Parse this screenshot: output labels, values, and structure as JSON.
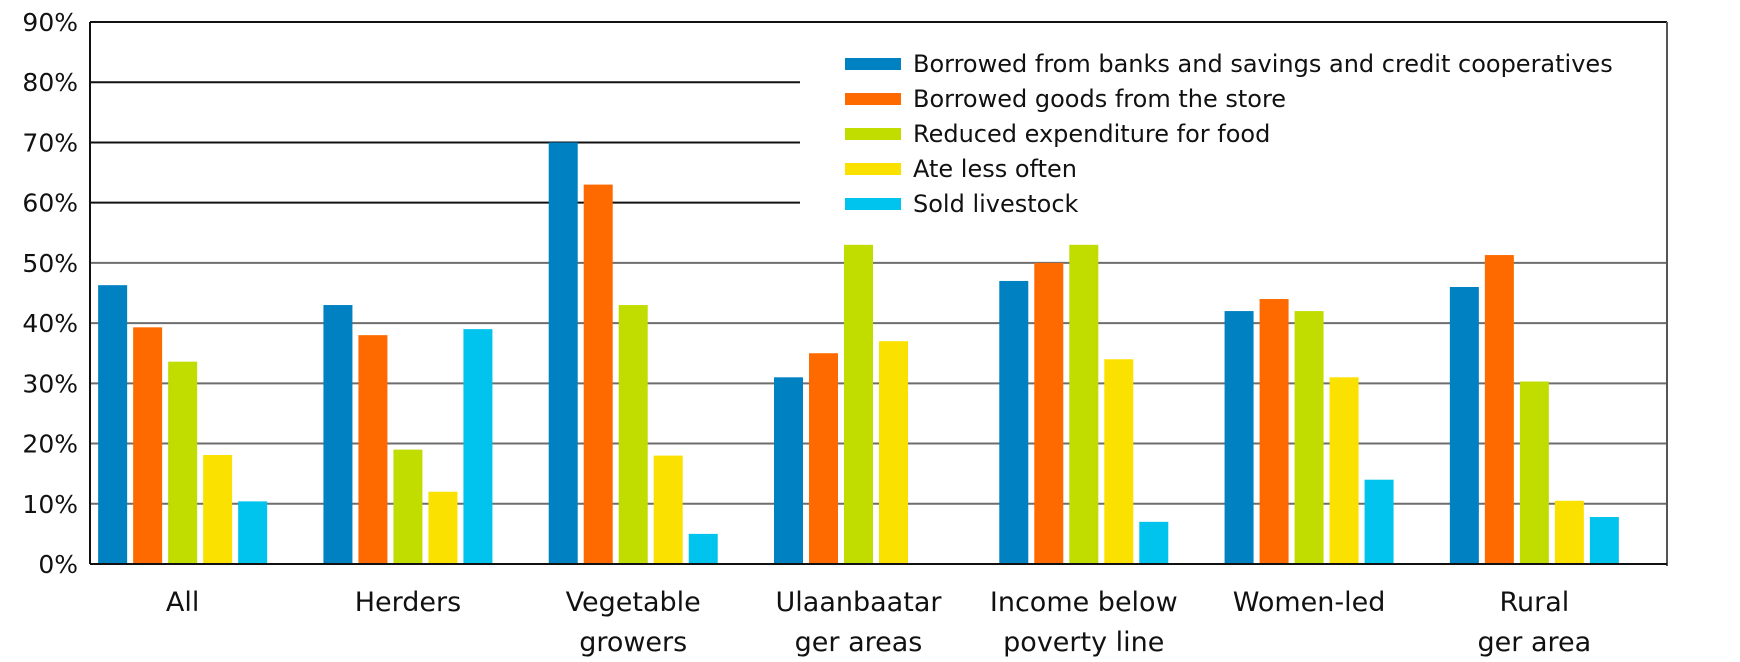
{
  "chart_data": {
    "type": "bar",
    "title": "",
    "xlabel": "",
    "ylabel": "",
    "ylim": [
      0,
      90
    ],
    "y_ticks": [
      "0%",
      "10%",
      "20%",
      "30%",
      "40%",
      "50%",
      "60%",
      "70%",
      "80%",
      "90%"
    ],
    "grid": true,
    "legend_position": "top-right",
    "categories": [
      [
        "All"
      ],
      [
        "Herders"
      ],
      [
        "Vegetable",
        "growers"
      ],
      [
        "Ulaanbaatar",
        "ger areas"
      ],
      [
        "Income below",
        "poverty line"
      ],
      [
        "Women-led"
      ],
      [
        "Rural",
        "ger area"
      ]
    ],
    "series": [
      {
        "name": "Borrowed from banks and savings and credit cooperatives",
        "color": "#0081c2",
        "values": [
          46.3,
          43,
          70,
          31,
          47,
          42,
          46
        ]
      },
      {
        "name": "Borrowed goods from the store",
        "color": "#ff6a00",
        "values": [
          39.3,
          38,
          63,
          35,
          50,
          44,
          51.3
        ]
      },
      {
        "name": "Reduced expenditure for food",
        "color": "#c1dd00",
        "values": [
          33.6,
          19,
          43,
          53,
          53,
          42,
          30.3
        ]
      },
      {
        "name": "Ate less often",
        "color": "#fbe100",
        "values": [
          18.1,
          12,
          18,
          37,
          34,
          31,
          10.5
        ]
      },
      {
        "name": "Sold livestock",
        "color": "#00c4ee",
        "values": [
          10.4,
          39,
          5,
          null,
          7,
          14,
          7.8
        ]
      }
    ]
  }
}
